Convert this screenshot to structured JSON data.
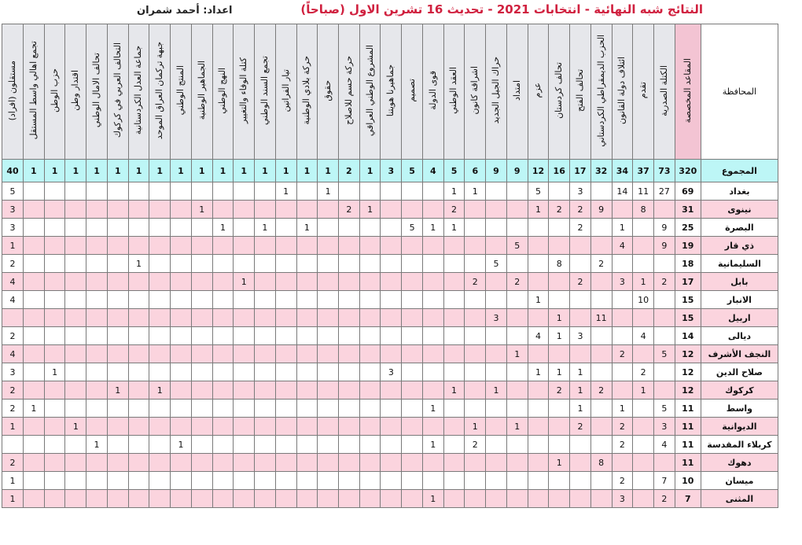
{
  "title": "النتائج شبه النهائية - انتخابات 2021 - تحديث 16  تشرين الاول (صباحاً)",
  "author": "اعداد: أحمد شمران",
  "table": {
    "province_header": "المحافظة",
    "seats_header": "المقاعد المخصصة",
    "parties": [
      "الكتلة الصدرية",
      "تقدم",
      "ائتلاف دولة القانون",
      "الحزب الديمقراطي الكردستاني",
      "تحالف الفتح",
      "تحالف كردستان",
      "عزم",
      "امتداد",
      "حراك الجيل الجديد",
      "اشراقة كانون",
      "العقد الوطني",
      "قوى الدولة",
      "تصميم",
      "جماهيرنا هويتنا",
      "المشروع الوطني العراقي",
      "حركة حسم للاصلاح",
      "حقوق",
      "حركة بلادي الوطنية",
      "تيار الفراتين",
      "تجمع السند الوطني",
      "كتلة الوفاء والتغيير",
      "النهج الوطني",
      "الجماهير الوطنية",
      "المنتج الوطني",
      "جبهة تركمان العراق الموحد",
      "جماعة العدل الكردستانية",
      "التحالف العربي في كركوك",
      "تحالف الامال الوطني",
      "اقتدار وطن",
      "حزب الوطن",
      "تجمع اهالي واسط المستقل",
      "مستقلون (افراد)"
    ],
    "total": {
      "label": "المجموع",
      "seats": "320",
      "values": [
        "73",
        "37",
        "34",
        "32",
        "17",
        "16",
        "12",
        "9",
        "9",
        "6",
        "5",
        "4",
        "5",
        "3",
        "1",
        "2",
        "1",
        "1",
        "1",
        "1",
        "1",
        "1",
        "1",
        "1",
        "1",
        "1",
        "1",
        "1",
        "1",
        "1",
        "1",
        "40"
      ]
    },
    "rows": [
      {
        "province": "بغداد",
        "seats": "69",
        "values": [
          "27",
          "11",
          "14",
          "",
          "3",
          "",
          "5",
          "",
          "",
          "1",
          "1",
          "",
          "",
          "",
          "",
          "",
          "1",
          "",
          "1",
          "",
          "",
          "",
          "",
          "",
          "",
          "",
          "",
          "",
          "",
          "",
          "",
          "5"
        ]
      },
      {
        "province": "نينوى",
        "seats": "31",
        "values": [
          "",
          "8",
          "",
          "9",
          "2",
          "2",
          "1",
          "",
          "",
          "",
          "2",
          "",
          "",
          "",
          "1",
          "2",
          "",
          "",
          "",
          "",
          "",
          "",
          "1",
          "",
          "",
          "",
          "",
          "",
          "",
          "",
          "",
          "3"
        ]
      },
      {
        "province": "البصرة",
        "seats": "25",
        "values": [
          "9",
          "",
          "1",
          "",
          "2",
          "",
          "",
          "",
          "",
          "",
          "1",
          "1",
          "5",
          "",
          "",
          "",
          "",
          "1",
          "",
          "1",
          "",
          "1",
          "",
          "",
          "",
          "",
          "",
          "",
          "",
          "",
          "",
          "3"
        ]
      },
      {
        "province": "ذي قار",
        "seats": "19",
        "values": [
          "9",
          "",
          "4",
          "",
          "",
          "",
          "",
          "5",
          "",
          "",
          "",
          "",
          "",
          "",
          "",
          "",
          "",
          "",
          "",
          "",
          "",
          "",
          "",
          "",
          "",
          "",
          "",
          "",
          "",
          "",
          "",
          "1"
        ]
      },
      {
        "province": "السليمانية",
        "seats": "18",
        "values": [
          "",
          "",
          "",
          "2",
          "",
          "8",
          "",
          "",
          "5",
          "",
          "",
          "",
          "",
          "",
          "",
          "",
          "",
          "",
          "",
          "",
          "",
          "",
          "",
          "",
          "",
          "1",
          "",
          "",
          "",
          "",
          "",
          "2"
        ]
      },
      {
        "province": "بابل",
        "seats": "17",
        "values": [
          "2",
          "1",
          "3",
          "",
          "2",
          "",
          "",
          "2",
          "",
          "2",
          "",
          "",
          "",
          "",
          "",
          "",
          "",
          "",
          "",
          "",
          "1",
          "",
          "",
          "",
          "",
          "",
          "",
          "",
          "",
          "",
          "",
          "4"
        ]
      },
      {
        "province": "الانبار",
        "seats": "15",
        "values": [
          "",
          "10",
          "",
          "",
          "",
          "",
          "1",
          "",
          "",
          "",
          "",
          "",
          "",
          "",
          "",
          "",
          "",
          "",
          "",
          "",
          "",
          "",
          "",
          "",
          "",
          "",
          "",
          "",
          "",
          "",
          "",
          "4"
        ]
      },
      {
        "province": "اربيل",
        "seats": "15",
        "values": [
          "",
          "",
          "",
          "11",
          "",
          "1",
          "",
          "",
          "3",
          "",
          "",
          "",
          "",
          "",
          "",
          "",
          "",
          "",
          "",
          "",
          "",
          "",
          "",
          "",
          "",
          "",
          "",
          "",
          "",
          "",
          "",
          ""
        ]
      },
      {
        "province": "ديالى",
        "seats": "14",
        "values": [
          "",
          "4",
          "",
          "",
          "3",
          "1",
          "4",
          "",
          "",
          "",
          "",
          "",
          "",
          "",
          "",
          "",
          "",
          "",
          "",
          "",
          "",
          "",
          "",
          "",
          "",
          "",
          "",
          "",
          "",
          "",
          "",
          "2"
        ]
      },
      {
        "province": "النجف الأشرف",
        "seats": "12",
        "values": [
          "5",
          "",
          "2",
          "",
          "",
          "",
          "",
          "1",
          "",
          "",
          "",
          "",
          "",
          "",
          "",
          "",
          "",
          "",
          "",
          "",
          "",
          "",
          "",
          "",
          "",
          "",
          "",
          "",
          "",
          "",
          "",
          "4"
        ]
      },
      {
        "province": "صلاح الدين",
        "seats": "12",
        "values": [
          "",
          "2",
          "",
          "",
          "1",
          "1",
          "1",
          "",
          "",
          "",
          "",
          "",
          "",
          "3",
          "",
          "",
          "",
          "",
          "",
          "",
          "",
          "",
          "",
          "",
          "",
          "",
          "",
          "",
          "",
          "1",
          "",
          "3"
        ]
      },
      {
        "province": "كركوك",
        "seats": "12",
        "values": [
          "",
          "1",
          "",
          "2",
          "1",
          "2",
          "",
          "",
          "1",
          "",
          "1",
          "",
          "",
          "",
          "",
          "",
          "",
          "",
          "",
          "",
          "",
          "",
          "",
          "",
          "1",
          "",
          "1",
          "",
          "",
          "",
          "",
          "2"
        ]
      },
      {
        "province": "واسط",
        "seats": "11",
        "values": [
          "5",
          "",
          "1",
          "",
          "1",
          "",
          "",
          "",
          "",
          "",
          "",
          "1",
          "",
          "",
          "",
          "",
          "",
          "",
          "",
          "",
          "",
          "",
          "",
          "",
          "",
          "",
          "",
          "",
          "",
          "",
          "1",
          "2"
        ]
      },
      {
        "province": "الديوانية",
        "seats": "11",
        "values": [
          "3",
          "",
          "2",
          "",
          "2",
          "",
          "",
          "1",
          "",
          "1",
          "",
          "",
          "",
          "",
          "",
          "",
          "",
          "",
          "",
          "",
          "",
          "",
          "",
          "",
          "",
          "",
          "",
          "",
          "1",
          "",
          "",
          "1"
        ]
      },
      {
        "province": "كربلاء المقدسة",
        "seats": "11",
        "values": [
          "4",
          "",
          "2",
          "",
          "",
          "",
          "",
          "",
          "",
          "2",
          "",
          "1",
          "",
          "",
          "",
          "",
          "",
          "",
          "",
          "",
          "",
          "",
          "",
          "1",
          "",
          "",
          "",
          "1",
          "",
          "",
          "",
          ""
        ]
      },
      {
        "province": "دهوك",
        "seats": "11",
        "values": [
          "",
          "",
          "",
          "8",
          "",
          "1",
          "",
          "",
          "",
          "",
          "",
          "",
          "",
          "",
          "",
          "",
          "",
          "",
          "",
          "",
          "",
          "",
          "",
          "",
          "",
          "",
          "",
          "",
          "",
          "",
          "",
          "2"
        ]
      },
      {
        "province": "ميسان",
        "seats": "10",
        "values": [
          "7",
          "",
          "2",
          "",
          "",
          "",
          "",
          "",
          "",
          "",
          "",
          "",
          "",
          "",
          "",
          "",
          "",
          "",
          "",
          "",
          "",
          "",
          "",
          "",
          "",
          "",
          "",
          "",
          "",
          "",
          "",
          "1"
        ]
      },
      {
        "province": "المثنى",
        "seats": "7",
        "values": [
          "2",
          "",
          "3",
          "",
          "",
          "",
          "",
          "",
          "",
          "",
          "",
          "1",
          "",
          "",
          "",
          "",
          "",
          "",
          "",
          "",
          "",
          "",
          "",
          "",
          "",
          "",
          "",
          "",
          "",
          "",
          "",
          "1"
        ]
      }
    ]
  },
  "colors": {
    "title": "#d0213f",
    "header_bg": "#e6e7eb",
    "seats_header_bg": "#f3c4d3",
    "total_row_bg": "#bdf6f6",
    "pink_row_bg": "#fbd4de"
  }
}
